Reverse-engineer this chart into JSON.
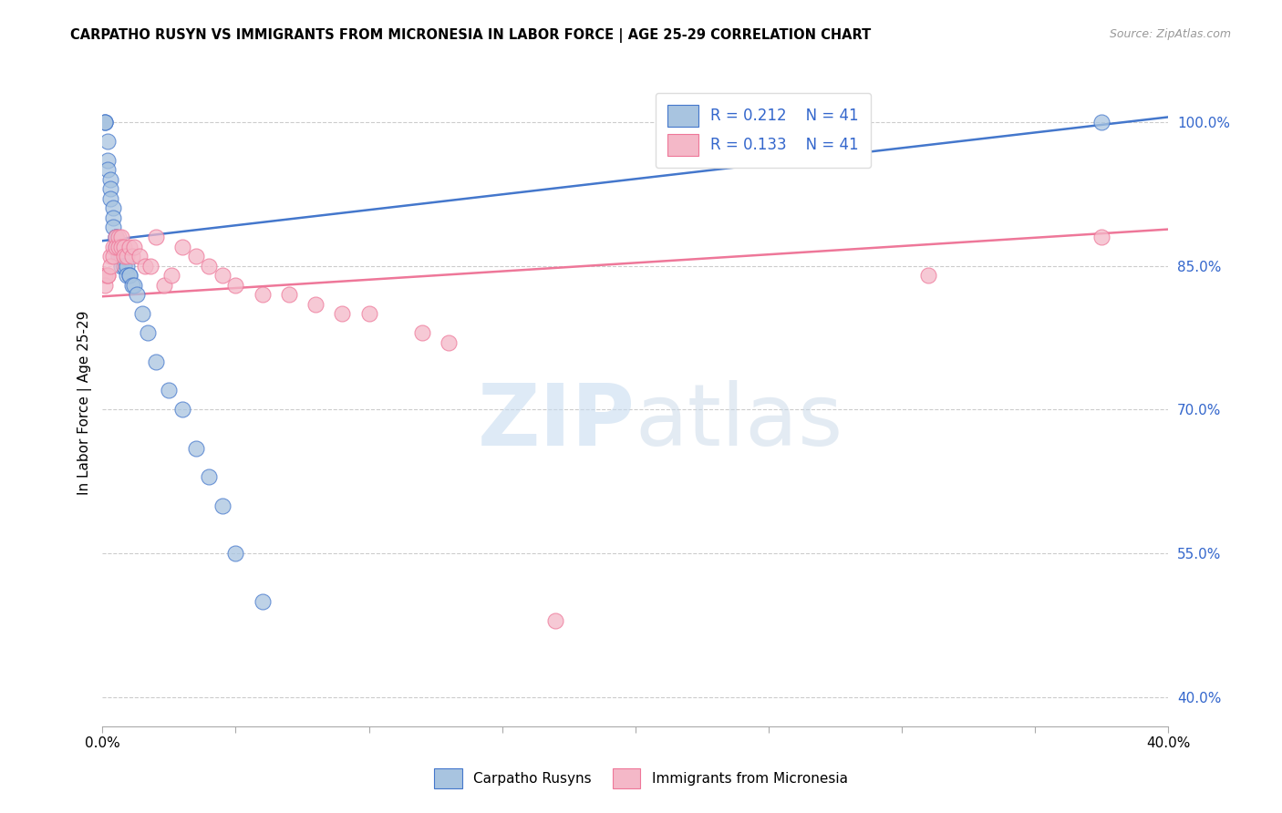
{
  "title": "CARPATHO RUSYN VS IMMIGRANTS FROM MICRONESIA IN LABOR FORCE | AGE 25-29 CORRELATION CHART",
  "source": "Source: ZipAtlas.com",
  "ylabel": "In Labor Force | Age 25-29",
  "ytick_values": [
    1.0,
    0.85,
    0.7,
    0.55,
    0.4
  ],
  "xmin": 0.0,
  "xmax": 0.4,
  "ymin": 0.37,
  "ymax": 1.045,
  "R_blue": 0.212,
  "N_blue": 41,
  "R_pink": 0.133,
  "N_pink": 41,
  "blue_fill": "#A8C4E0",
  "pink_fill": "#F4B8C8",
  "blue_edge": "#4477CC",
  "pink_edge": "#EE7799",
  "blue_line": "#4477CC",
  "pink_line": "#EE7799",
  "blue_line_y0": 0.876,
  "blue_line_y1": 1.005,
  "pink_line_y0": 0.818,
  "pink_line_y1": 0.888,
  "blue_x": [
    0.001,
    0.001,
    0.001,
    0.002,
    0.002,
    0.002,
    0.003,
    0.003,
    0.003,
    0.004,
    0.004,
    0.004,
    0.005,
    0.005,
    0.005,
    0.005,
    0.006,
    0.006,
    0.006,
    0.007,
    0.007,
    0.008,
    0.008,
    0.009,
    0.009,
    0.01,
    0.01,
    0.011,
    0.012,
    0.013,
    0.015,
    0.017,
    0.02,
    0.025,
    0.03,
    0.035,
    0.04,
    0.045,
    0.05,
    0.06,
    0.375
  ],
  "blue_y": [
    1.0,
    1.0,
    1.0,
    0.98,
    0.96,
    0.95,
    0.94,
    0.93,
    0.92,
    0.91,
    0.9,
    0.89,
    0.88,
    0.88,
    0.87,
    0.87,
    0.87,
    0.86,
    0.86,
    0.86,
    0.85,
    0.85,
    0.85,
    0.85,
    0.84,
    0.84,
    0.84,
    0.83,
    0.83,
    0.82,
    0.8,
    0.78,
    0.75,
    0.72,
    0.7,
    0.66,
    0.63,
    0.6,
    0.55,
    0.5,
    1.0
  ],
  "pink_x": [
    0.001,
    0.001,
    0.002,
    0.002,
    0.003,
    0.003,
    0.004,
    0.004,
    0.005,
    0.005,
    0.006,
    0.006,
    0.007,
    0.007,
    0.008,
    0.008,
    0.009,
    0.01,
    0.011,
    0.012,
    0.014,
    0.016,
    0.018,
    0.02,
    0.023,
    0.026,
    0.03,
    0.035,
    0.04,
    0.045,
    0.05,
    0.06,
    0.07,
    0.08,
    0.09,
    0.1,
    0.12,
    0.13,
    0.17,
    0.31,
    0.375
  ],
  "pink_y": [
    0.84,
    0.83,
    0.84,
    0.84,
    0.86,
    0.85,
    0.87,
    0.86,
    0.88,
    0.87,
    0.88,
    0.87,
    0.88,
    0.87,
    0.87,
    0.86,
    0.86,
    0.87,
    0.86,
    0.87,
    0.86,
    0.85,
    0.85,
    0.88,
    0.83,
    0.84,
    0.87,
    0.86,
    0.85,
    0.84,
    0.83,
    0.82,
    0.82,
    0.81,
    0.8,
    0.8,
    0.78,
    0.77,
    0.48,
    0.84,
    0.88
  ]
}
